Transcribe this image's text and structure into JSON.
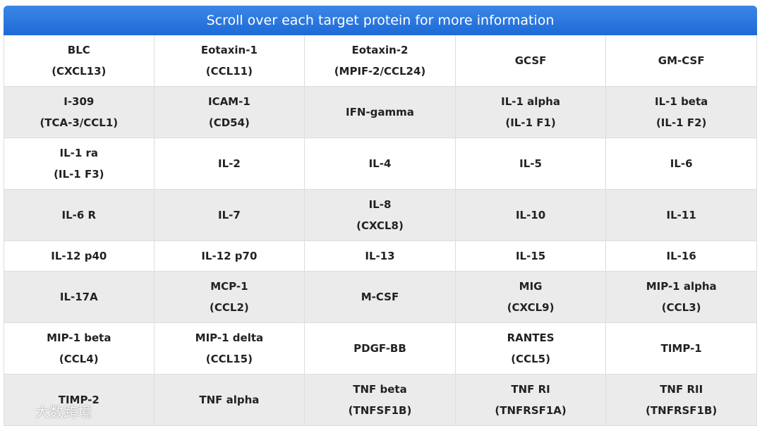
{
  "header": {
    "title": "Scroll over each target protein for more information"
  },
  "table": {
    "rows": [
      [
        [
          "BLC",
          "(CXCL13)"
        ],
        [
          "Eotaxin-1",
          "(CCL11)"
        ],
        [
          "Eotaxin-2",
          "(MPIF-2/CCL24)"
        ],
        [
          "GCSF"
        ],
        [
          "GM-CSF"
        ]
      ],
      [
        [
          "I-309",
          "(TCA-3/CCL1)"
        ],
        [
          "ICAM-1",
          "(CD54)"
        ],
        [
          "IFN-gamma"
        ],
        [
          "IL-1 alpha",
          "(IL-1 F1)"
        ],
        [
          "IL-1 beta",
          "(IL-1 F2)"
        ]
      ],
      [
        [
          "IL-1 ra",
          "(IL-1 F3)"
        ],
        [
          "IL-2"
        ],
        [
          "IL-4"
        ],
        [
          "IL-5"
        ],
        [
          "IL-6"
        ]
      ],
      [
        [
          "IL-6 R"
        ],
        [
          "IL-7"
        ],
        [
          "IL-8",
          "(CXCL8)"
        ],
        [
          "IL-10"
        ],
        [
          "IL-11"
        ]
      ],
      [
        [
          "IL-12 p40"
        ],
        [
          "IL-12 p70"
        ],
        [
          "IL-13"
        ],
        [
          "IL-15"
        ],
        [
          "IL-16"
        ]
      ],
      [
        [
          "IL-17A"
        ],
        [
          "MCP-1",
          "(CCL2)"
        ],
        [
          "M-CSF"
        ],
        [
          "MIG",
          "(CXCL9)"
        ],
        [
          "MIP-1 alpha",
          "(CCL3)"
        ]
      ],
      [
        [
          "MIP-1 beta",
          "(CCL4)"
        ],
        [
          "MIP-1 delta",
          "(CCL15)"
        ],
        [
          "PDGF-BB"
        ],
        [
          "RANTES",
          "(CCL5)"
        ],
        [
          "TIMP-1"
        ]
      ],
      [
        [
          "TIMP-2"
        ],
        [
          "TNF alpha"
        ],
        [
          "TNF beta",
          "(TNFSF1B)"
        ],
        [
          "TNF RI",
          "(TNFRSF1A)"
        ],
        [
          "TNF RII",
          "(TNFRSF1B)"
        ]
      ]
    ]
  },
  "watermark": "大数跨境"
}
